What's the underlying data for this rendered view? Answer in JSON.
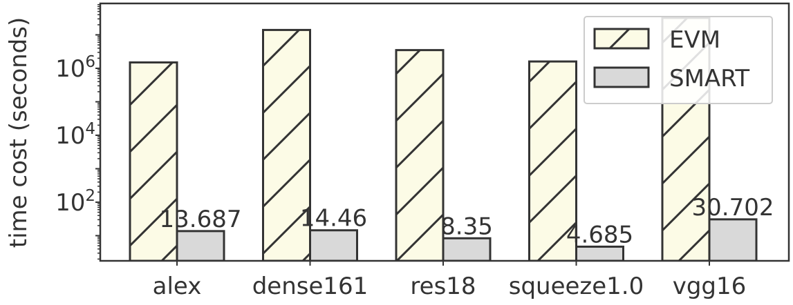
{
  "chart_data": {
    "type": "bar",
    "categories": [
      "alex",
      "dense161",
      "res18",
      "squeeze1.0",
      "vgg16"
    ],
    "series": [
      {
        "name": "EVM",
        "values": [
          1500000,
          14000000,
          3500000,
          1600000,
          32000000
        ],
        "color": "#fcfbe6",
        "hatch": "diagonal"
      },
      {
        "name": "SMART",
        "values": [
          13.687,
          14.46,
          8.35,
          4.685,
          30.702
        ],
        "color": "#d9d9d9"
      }
    ],
    "data_labels": [
      "13.687",
      "14.46",
      "8.35",
      "4.685",
      "30.702"
    ],
    "ylabel": "time cost (seconds)",
    "yscale": "log",
    "ylim": [
      2,
      50000000
    ],
    "yticks": [
      {
        "value": 100,
        "base": "10",
        "exp": "2"
      },
      {
        "value": 10000,
        "base": "10",
        "exp": "4"
      },
      {
        "value": 1000000,
        "base": "10",
        "exp": "6"
      }
    ],
    "grid": false,
    "legend_position": "top-right",
    "edge_color": "#333333"
  }
}
